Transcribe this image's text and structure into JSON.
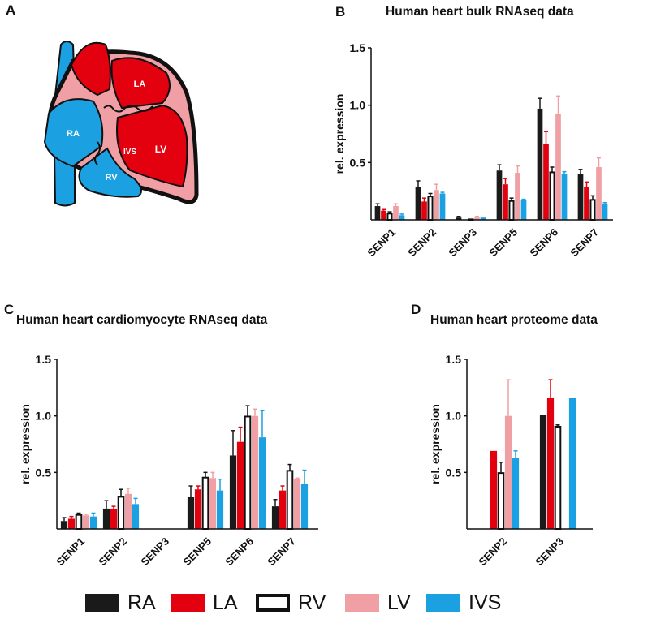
{
  "panels": {
    "a": {
      "letter": "A",
      "labels": {
        "ra": "RA",
        "la": "LA",
        "rv": "RV",
        "lv": "LV",
        "ivs": "IVS"
      }
    },
    "b": {
      "letter": "B",
      "title": "Human heart bulk RNAseq data"
    },
    "c": {
      "letter": "C",
      "title": "Human heart cardiomyocyte RNAseq data"
    },
    "d": {
      "letter": "D",
      "title": "Human heart proteome data"
    }
  },
  "colors": {
    "RA": "#1a1a1a",
    "LA": "#e3000f",
    "RV": "#ffffff",
    "LV": "#f0a0a4",
    "IVS": "#1ba1e2",
    "heart_red": "#e3000f",
    "heart_blue": "#1ba1e2",
    "heart_pink": "#f0a0a4"
  },
  "legend": [
    {
      "key": "RA",
      "label": "RA"
    },
    {
      "key": "LA",
      "label": "LA"
    },
    {
      "key": "RV",
      "label": "RV"
    },
    {
      "key": "LV",
      "label": "LV"
    },
    {
      "key": "IVS",
      "label": "IVS"
    }
  ],
  "chart_data": [
    {
      "id": "b",
      "type": "bar",
      "title": "Human heart bulk RNAseq data",
      "xlabel": "",
      "ylabel": "rel. expression",
      "ylim": [
        0,
        1.5
      ],
      "yticks": [
        "0.5",
        "1.0",
        "1.5"
      ],
      "categories": [
        "SENP1",
        "SENP2",
        "SENP3",
        "SENP5",
        "SENP6",
        "SENP7"
      ],
      "series": [
        {
          "name": "RA",
          "values": [
            0.12,
            0.29,
            0.02,
            0.43,
            0.97,
            0.4
          ],
          "errors": [
            0.02,
            0.05,
            0.01,
            0.05,
            0.09,
            0.04
          ]
        },
        {
          "name": "LA",
          "values": [
            0.08,
            0.16,
            0.0,
            0.31,
            0.66,
            0.29
          ],
          "errors": [
            0.01,
            0.03,
            0.0,
            0.05,
            0.11,
            0.04
          ]
        },
        {
          "name": "RV",
          "values": [
            0.06,
            0.21,
            0.01,
            0.17,
            0.42,
            0.18
          ],
          "errors": [
            0.01,
            0.02,
            0.0,
            0.02,
            0.04,
            0.03
          ]
        },
        {
          "name": "LV",
          "values": [
            0.12,
            0.26,
            0.02,
            0.41,
            0.92,
            0.46
          ],
          "errors": [
            0.02,
            0.05,
            0.01,
            0.06,
            0.16,
            0.08
          ]
        },
        {
          "name": "IVS",
          "values": [
            0.04,
            0.23,
            0.02,
            0.17,
            0.4,
            0.14
          ],
          "errors": [
            0.01,
            0.01,
            0.0,
            0.01,
            0.02,
            0.01
          ]
        }
      ]
    },
    {
      "id": "c",
      "type": "bar",
      "title": "Human heart cardiomyocyte RNAseq data",
      "xlabel": "",
      "ylabel": "rel. expression",
      "ylim": [
        0,
        1.5
      ],
      "yticks": [
        "0.5",
        "1.0",
        "1.5"
      ],
      "categories": [
        "SENP1",
        "SENP2",
        "SENP3",
        "SENP5",
        "SENP6",
        "SENP7"
      ],
      "series": [
        {
          "name": "RA",
          "values": [
            0.07,
            0.18,
            0.0,
            0.28,
            0.65,
            0.2
          ],
          "errors": [
            0.03,
            0.07,
            0.0,
            0.1,
            0.22,
            0.06
          ]
        },
        {
          "name": "LA",
          "values": [
            0.09,
            0.18,
            0.0,
            0.35,
            0.77,
            0.34
          ],
          "errors": [
            0.02,
            0.02,
            0.0,
            0.03,
            0.13,
            0.04
          ]
        },
        {
          "name": "RV",
          "values": [
            0.13,
            0.29,
            0.0,
            0.46,
            1.0,
            0.52
          ],
          "errors": [
            0.01,
            0.06,
            0.0,
            0.04,
            0.09,
            0.05
          ]
        },
        {
          "name": "LV",
          "values": [
            0.12,
            0.31,
            0.0,
            0.45,
            1.0,
            0.44
          ],
          "errors": [
            0.01,
            0.05,
            0.0,
            0.05,
            0.06,
            0.01
          ]
        },
        {
          "name": "IVS",
          "values": [
            0.11,
            0.22,
            0.0,
            0.34,
            0.81,
            0.4
          ],
          "errors": [
            0.03,
            0.05,
            0.0,
            0.1,
            0.24,
            0.12
          ]
        }
      ]
    },
    {
      "id": "d",
      "type": "bar",
      "title": "Human heart proteome data",
      "xlabel": "",
      "ylabel": "rel. expression",
      "ylim": [
        0,
        1.5
      ],
      "yticks": [
        "0.5",
        "1.0",
        "1.5"
      ],
      "categories": [
        "SENP2",
        "SENP3"
      ],
      "series": [
        {
          "name": "RA",
          "values": [
            null,
            1.01
          ],
          "errors": [
            0,
            0
          ]
        },
        {
          "name": "LA",
          "values": [
            0.69,
            1.16
          ],
          "errors": [
            0,
            0.16
          ]
        },
        {
          "name": "RV",
          "values": [
            0.5,
            0.91
          ],
          "errors": [
            0.09,
            0.01
          ]
        },
        {
          "name": "LV",
          "values": [
            1.0,
            null
          ],
          "errors": [
            0.32,
            0
          ]
        },
        {
          "name": "IVS",
          "values": [
            0.63,
            1.16
          ],
          "errors": [
            0.06,
            0
          ]
        }
      ]
    }
  ]
}
